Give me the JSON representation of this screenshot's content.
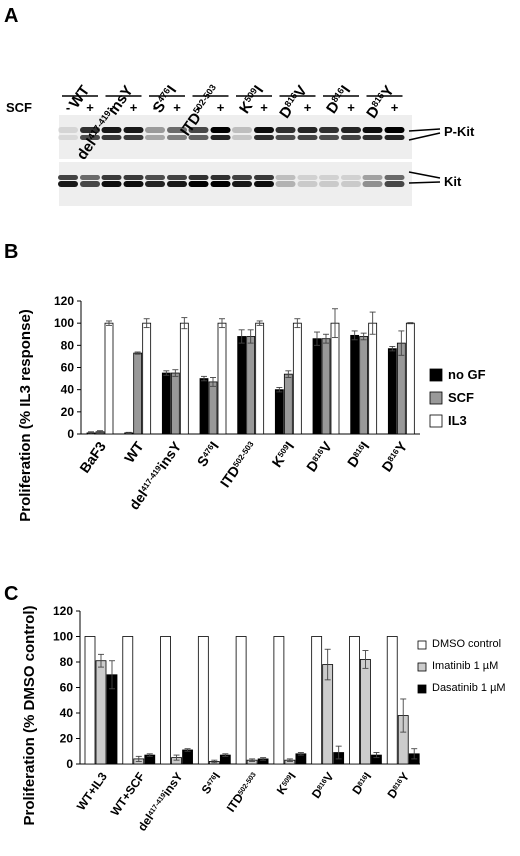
{
  "panels": {
    "a": "A",
    "b": "B",
    "c": "C"
  },
  "blot": {
    "lanes": [
      {
        "base": "WT",
        "sup": "",
        "tail": ""
      },
      {
        "base": "del",
        "sup": "417-419",
        "tail": "insY"
      },
      {
        "base": "S",
        "sup": "476",
        "tail": "I"
      },
      {
        "base": "ITD",
        "sup": "502-503",
        "tail": ""
      },
      {
        "base": "K",
        "sup": "509",
        "tail": "I"
      },
      {
        "base": "D",
        "sup": "816",
        "tail": "V"
      },
      {
        "base": "D",
        "sup": "816",
        "tail": "I"
      },
      {
        "base": "D",
        "sup": "816",
        "tail": "Y"
      }
    ],
    "scf_label": "SCF",
    "minus": "-",
    "plus": "+",
    "pkit_label": "P-Kit",
    "kit_label": "Kit"
  },
  "chart_data": [
    {
      "type": "bar",
      "ylabel": "Proliferation (% IL3 response)",
      "ylim": [
        0,
        120
      ],
      "yticks": [
        0,
        20,
        40,
        60,
        80,
        100,
        120
      ],
      "categories": [
        {
          "base": "BaF3",
          "sup": "",
          "tail": ""
        },
        {
          "base": "WT",
          "sup": "",
          "tail": ""
        },
        {
          "base": "del",
          "sup": "417-419",
          "tail": "insY"
        },
        {
          "base": "S",
          "sup": "476",
          "tail": "I"
        },
        {
          "base": "ITD",
          "sup": "502-503",
          "tail": ""
        },
        {
          "base": "K",
          "sup": "509",
          "tail": "I"
        },
        {
          "base": "D",
          "sup": "816",
          "tail": "V"
        },
        {
          "base": "D",
          "sup": "816",
          "tail": "I"
        },
        {
          "base": "D",
          "sup": "816",
          "tail": "Y"
        }
      ],
      "legend_position": "right",
      "series": [
        {
          "name": "no GF",
          "color": "#000000",
          "values": [
            1,
            1,
            55,
            50,
            88,
            40,
            86,
            89,
            77
          ],
          "errors": [
            1,
            0.5,
            2,
            2,
            6,
            2,
            6,
            4,
            2
          ]
        },
        {
          "name": "SCF",
          "color": "#999999",
          "values": [
            2,
            73,
            55,
            47,
            88,
            54,
            86,
            88,
            82
          ],
          "errors": [
            1,
            1,
            3,
            4,
            6,
            3,
            4,
            3,
            11
          ]
        },
        {
          "name": "IL3",
          "color": "#ffffff",
          "values": [
            100,
            100,
            100,
            100,
            100,
            100,
            100,
            100,
            100
          ],
          "errors": [
            2,
            4,
            5,
            4,
            2,
            4,
            13,
            10,
            0.5
          ]
        }
      ]
    },
    {
      "type": "bar",
      "ylabel": "Proliferation (% DMSO control)",
      "ylim": [
        0,
        120
      ],
      "yticks": [
        0,
        20,
        40,
        60,
        80,
        100,
        120
      ],
      "categories": [
        {
          "base": "WT+IL3",
          "sup": "",
          "tail": ""
        },
        {
          "base": "WT+SCF",
          "sup": "",
          "tail": ""
        },
        {
          "base": "del",
          "sup": "417-419",
          "tail": "insY"
        },
        {
          "base": "S",
          "sup": "476",
          "tail": "I"
        },
        {
          "base": "ITD",
          "sup": "502-503",
          "tail": ""
        },
        {
          "base": "K",
          "sup": "509",
          "tail": "I"
        },
        {
          "base": "D",
          "sup": "816",
          "tail": "V"
        },
        {
          "base": "D",
          "sup": "816",
          "tail": "I"
        },
        {
          "base": "D",
          "sup": "816",
          "tail": "Y"
        }
      ],
      "legend_position": "right",
      "series": [
        {
          "name": "DMSO control",
          "color": "#ffffff",
          "values": [
            100,
            100,
            100,
            100,
            100,
            100,
            100,
            100,
            100
          ],
          "errors": [
            0,
            0,
            0,
            0,
            0,
            0,
            0,
            0,
            0
          ]
        },
        {
          "name": "Imatinib 1 µM",
          "color": "#cccccc",
          "values": [
            81,
            4,
            5,
            2,
            3,
            3,
            78,
            82,
            38
          ],
          "errors": [
            5,
            2,
            2,
            1,
            1,
            1,
            12,
            7,
            13
          ]
        },
        {
          "name": "Dasatinib 1 µM",
          "color": "#000000",
          "values": [
            70,
            7,
            11,
            7,
            4,
            8,
            9,
            7,
            8
          ],
          "errors": [
            11,
            1,
            1,
            1,
            1,
            1,
            5,
            2,
            4
          ]
        }
      ]
    }
  ]
}
